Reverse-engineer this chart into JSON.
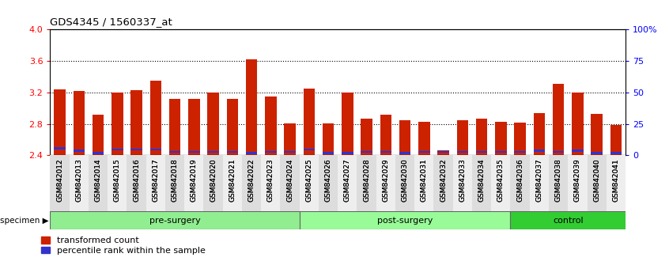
{
  "title": "GDS4345 / 1560337_at",
  "samples": [
    "GSM842012",
    "GSM842013",
    "GSM842014",
    "GSM842015",
    "GSM842016",
    "GSM842017",
    "GSM842018",
    "GSM842019",
    "GSM842020",
    "GSM842021",
    "GSM842022",
    "GSM842023",
    "GSM842024",
    "GSM842025",
    "GSM842026",
    "GSM842027",
    "GSM842028",
    "GSM842029",
    "GSM842030",
    "GSM842031",
    "GSM842032",
    "GSM842033",
    "GSM842034",
    "GSM842035",
    "GSM842036",
    "GSM842037",
    "GSM842038",
    "GSM842039",
    "GSM842040",
    "GSM842041"
  ],
  "red_values": [
    3.24,
    3.22,
    2.92,
    3.2,
    3.23,
    3.35,
    3.12,
    3.12,
    3.2,
    3.12,
    3.62,
    3.15,
    2.81,
    3.25,
    2.81,
    3.2,
    2.87,
    2.92,
    2.85,
    2.83,
    2.46,
    2.85,
    2.87,
    2.83,
    2.82,
    2.94,
    3.31,
    3.2,
    2.93,
    2.79
  ],
  "blue_percentiles": [
    5,
    3,
    1,
    4,
    4,
    4,
    2,
    2,
    2,
    2,
    1,
    2,
    2,
    4,
    1,
    1,
    2,
    2,
    1,
    2,
    2,
    2,
    2,
    2,
    2,
    3,
    2,
    3,
    1,
    1
  ],
  "groups": [
    {
      "label": "pre-surgery",
      "start": 0,
      "end": 13,
      "color": "#90EE90"
    },
    {
      "label": "post-surgery",
      "start": 13,
      "end": 24,
      "color": "#98FB98"
    },
    {
      "label": "control",
      "start": 24,
      "end": 30,
      "color": "#32CD32"
    }
  ],
  "ylim": [
    2.4,
    4.0
  ],
  "y_ticks": [
    2.4,
    2.8,
    3.2,
    3.6,
    4.0
  ],
  "right_ticks": [
    0,
    25,
    50,
    75,
    100
  ],
  "right_tick_labels": [
    "0",
    "25",
    "50",
    "75",
    "100%"
  ],
  "bar_width": 0.6,
  "red_color": "#CC2200",
  "blue_color": "#3333CC",
  "plot_bg": "white"
}
